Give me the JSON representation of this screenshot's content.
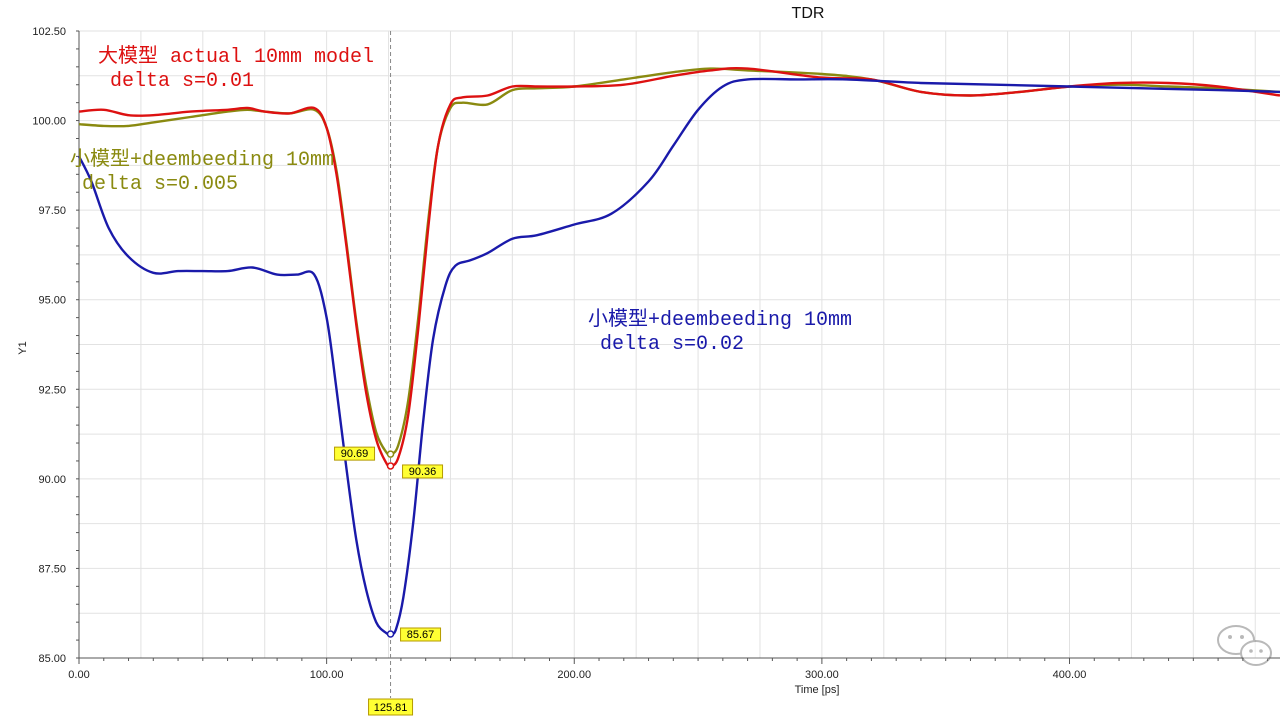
{
  "chart_data": {
    "type": "line",
    "title": "TDR",
    "xlabel": "Time [ps]",
    "ylabel": "Y1",
    "xlim": [
      0,
      485
    ],
    "ylim": [
      85,
      102.5
    ],
    "xticks": [
      0,
      100,
      200,
      300,
      400
    ],
    "xtick_labels": [
      "0.00",
      "100.00",
      "200.00",
      "300.00",
      "400.00"
    ],
    "yticks": [
      85,
      87.5,
      90,
      92.5,
      95,
      97.5,
      100,
      102.5
    ],
    "ytick_labels": [
      "85.00",
      "87.50",
      "90.00",
      "92.50",
      "95.00",
      "97.50",
      "100.00",
      "102.50"
    ],
    "grid": true,
    "cursor_x": 125.81,
    "cursor_label": "125.81",
    "series": [
      {
        "name": "大模型 actual 10mm model delta s=0.01",
        "color": "#dd1111",
        "x": [
          0,
          10,
          20,
          30,
          45,
          60,
          68,
          75,
          85,
          95,
          100,
          104,
          108,
          112,
          116,
          120,
          124,
          126,
          129,
          133,
          137,
          141,
          145,
          150,
          155,
          165,
          175,
          185,
          200,
          220,
          240,
          255,
          270,
          300,
          320,
          340,
          360,
          380,
          400,
          420,
          440,
          460,
          485
        ],
        "y": [
          100.25,
          100.3,
          100.15,
          100.15,
          100.25,
          100.3,
          100.35,
          100.25,
          100.2,
          100.35,
          99.8,
          98.5,
          96.5,
          94.3,
          92.4,
          91.1,
          90.45,
          90.36,
          90.6,
          91.8,
          94.2,
          97,
          99.3,
          100.45,
          100.65,
          100.7,
          100.95,
          100.95,
          100.95,
          101.0,
          101.25,
          101.4,
          101.45,
          101.2,
          101.15,
          100.8,
          100.7,
          100.8,
          100.95,
          101.05,
          101.05,
          100.95,
          100.7
        ]
      },
      {
        "name": "小模型+deembeeding 10mm delta s=0.005",
        "color": "#8a8a10",
        "x": [
          0,
          10,
          20,
          30,
          45,
          60,
          68,
          75,
          85,
          95,
          100,
          104,
          108,
          112,
          116,
          120,
          124,
          126,
          129,
          133,
          137,
          141,
          145,
          150,
          155,
          165,
          175,
          185,
          200,
          220,
          240,
          255,
          270,
          300,
          320,
          340,
          360,
          380,
          400,
          420,
          440,
          460,
          485
        ],
        "y": [
          99.9,
          99.85,
          99.85,
          99.95,
          100.1,
          100.25,
          100.3,
          100.25,
          100.2,
          100.3,
          99.8,
          98.6,
          96.6,
          94.4,
          92.6,
          91.3,
          90.75,
          90.69,
          90.95,
          92.2,
          94.5,
          97.2,
          99.3,
          100.35,
          100.5,
          100.45,
          100.85,
          100.9,
          100.95,
          101.15,
          101.35,
          101.45,
          101.4,
          101.3,
          101.15,
          100.8,
          100.7,
          100.8,
          100.95,
          101.0,
          100.95,
          100.9,
          100.8
        ]
      },
      {
        "name": "小模型+deembeeding 10mm delta s=0.02",
        "color": "#1a1aaa",
        "x": [
          0,
          5,
          12,
          20,
          30,
          40,
          50,
          60,
          70,
          80,
          88,
          95,
          100,
          104,
          108,
          112,
          116,
          120,
          124,
          126,
          128,
          131,
          135,
          139,
          143,
          148,
          152,
          158,
          165,
          175,
          185,
          200,
          215,
          230,
          240,
          250,
          260,
          270,
          290,
          310,
          340,
          370,
          400,
          430,
          460,
          485
        ],
        "y": [
          99.0,
          98.3,
          97.0,
          96.2,
          95.75,
          95.8,
          95.8,
          95.8,
          95.9,
          95.7,
          95.7,
          95.7,
          94.5,
          92.5,
          90.3,
          88.3,
          86.9,
          86.0,
          85.7,
          85.67,
          85.8,
          86.7,
          88.8,
          91.6,
          93.9,
          95.4,
          95.95,
          96.1,
          96.3,
          96.7,
          96.8,
          97.1,
          97.4,
          98.3,
          99.3,
          100.3,
          100.95,
          101.15,
          101.15,
          101.15,
          101.05,
          101.0,
          100.95,
          100.9,
          100.85,
          100.8
        ]
      }
    ],
    "markers": [
      {
        "label": "90.69",
        "x": 125.81,
        "y": 90.69
      },
      {
        "label": "90.36",
        "x": 125.81,
        "y": 90.36
      },
      {
        "label": "85.67",
        "x": 125.81,
        "y": 85.67
      }
    ],
    "annotations": [
      {
        "lines": [
          "大模型 actual 10mm model",
          "    delta s=0.01"
        ],
        "color": "#dd1111"
      },
      {
        "lines": [
          "小模型+deembeeding 10mm",
          "    delta s=0.005"
        ],
        "color": "#8a8a10"
      },
      {
        "lines": [
          "小模型+deembeeding 10mm",
          "    delta s=0.02"
        ],
        "color": "#1a1aaa"
      }
    ]
  }
}
